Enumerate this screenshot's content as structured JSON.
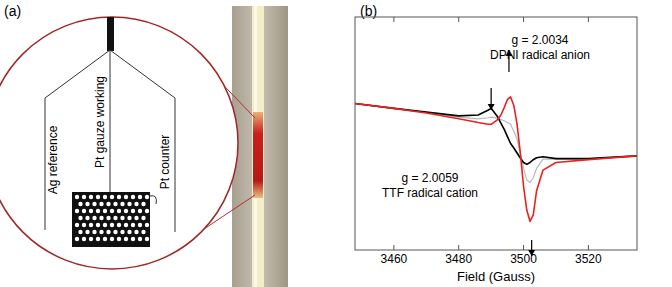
{
  "diagram": {
    "label": "(a)",
    "electrodes": [
      "Ag reference",
      "Pt gauze working",
      "Pt counter"
    ]
  },
  "chart_data": {
    "type": "line",
    "title": "(b)",
    "x_label": "Field (Gauss)",
    "annotations": [
      "g = 2.0034",
      "DPNI radical anion",
      "g = 2.0059",
      "TTF radical cation"
    ],
    "x": [
      3448,
      3460,
      3470,
      3480,
      3486,
      3489,
      3490,
      3492,
      3493,
      3494,
      3495,
      3496,
      3497,
      3498,
      3499,
      3500,
      3501,
      3502,
      3503,
      3504,
      3506,
      3510,
      3520,
      3535
    ],
    "series": [
      {
        "color": "#b8b8b8",
        "values": [
          25.7,
          21.6,
          18.0,
          14.0,
          12.5,
          13.5,
          14.0,
          13.0,
          12.0,
          11.0,
          9.5,
          8.0,
          2.0,
          -5.0,
          -17.0,
          -30.0,
          -40.0,
          -42.0,
          -38.0,
          -30.0,
          -22.0,
          -22.0,
          -22.0,
          -19.2
        ]
      },
      {
        "color": "#000000",
        "values": [
          25.7,
          21.6,
          18.4,
          15.1,
          15.9,
          20.0,
          21.6,
          14.3,
          9.0,
          3.7,
          -2.5,
          -8.6,
          -12.5,
          -16.7,
          -21.0,
          -24.9,
          -26.5,
          -24.9,
          -22.5,
          -20.8,
          -20.0,
          -21.6,
          -21.6,
          -19.2
        ]
      },
      {
        "color": "#e8231f",
        "values": [
          25.7,
          21.6,
          17.6,
          12.7,
          9.4,
          8.0,
          7.8,
          12.0,
          15.9,
          22.0,
          29.0,
          31.4,
          24.1,
          7.8,
          -16.7,
          -45.3,
          -65.7,
          -75.5,
          -69.8,
          -49.4,
          -31.4,
          -24.9,
          -22.4,
          -19.2
        ]
      }
    ],
    "xlim": [
      3448,
      3535
    ],
    "xticks": [
      3460,
      3480,
      3500,
      3520
    ],
    "ylim": [
      -100,
      100
    ],
    "grid": false,
    "tick_labels": "x"
  }
}
